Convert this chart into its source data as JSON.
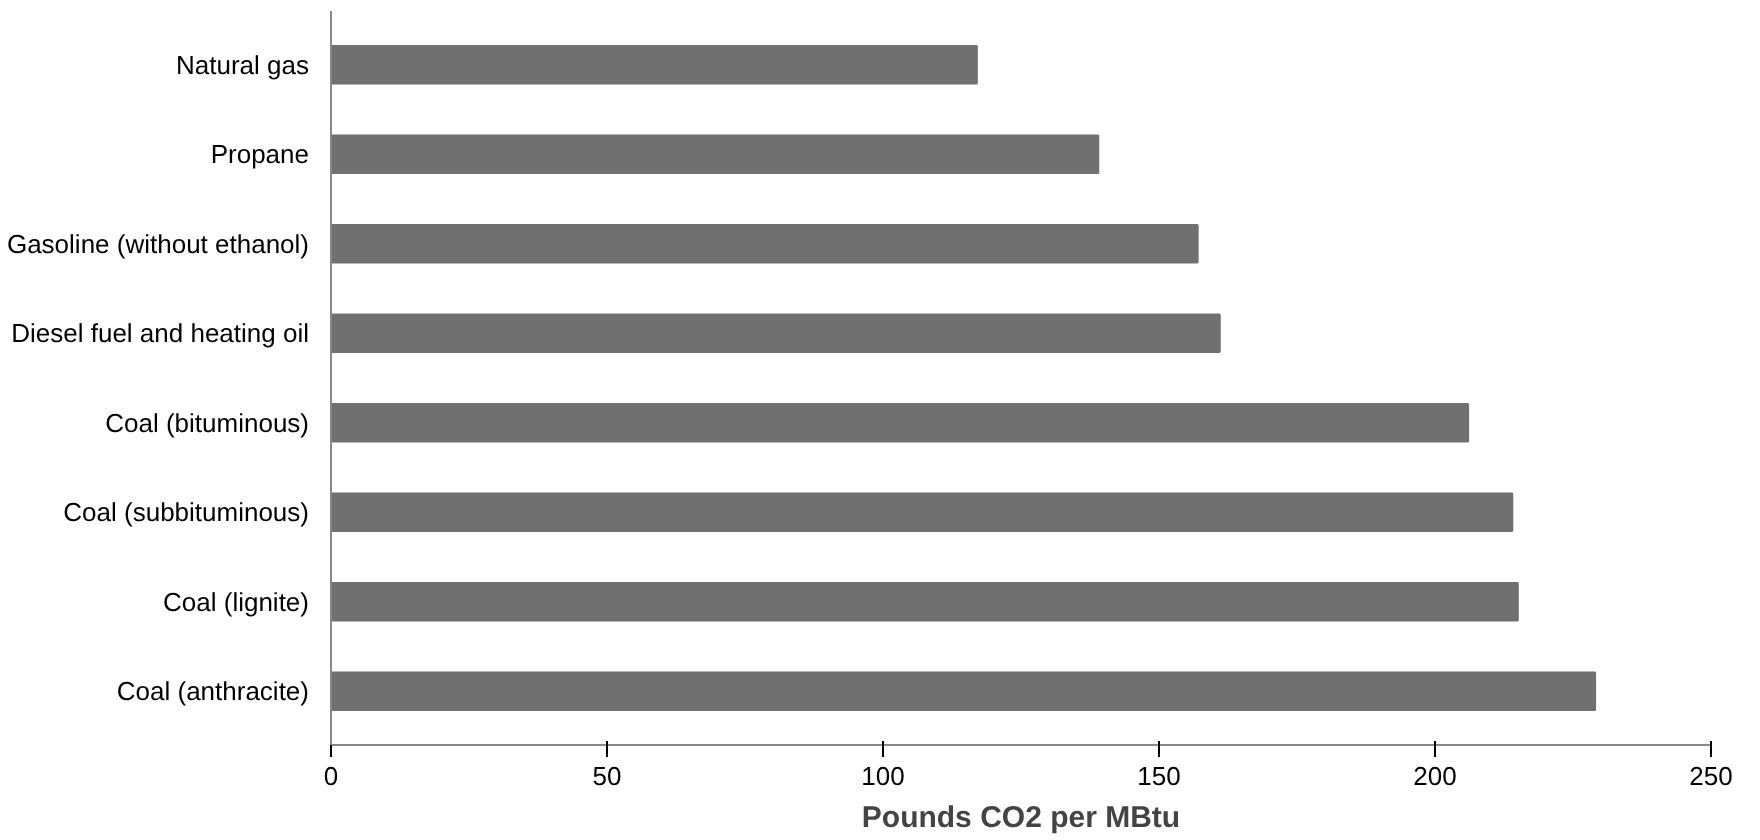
{
  "chart_data": {
    "type": "bar",
    "orientation": "horizontal",
    "xlabel": "Pounds CO2 per MBtu",
    "categories": [
      "Natural gas",
      "Propane",
      "Gasoline (without ethanol)",
      "Diesel fuel and heating oil",
      "Coal (bituminous)",
      "Coal (subbituminous)",
      "Coal (lignite)",
      "Coal (anthracite)"
    ],
    "values": [
      117,
      139,
      157,
      161,
      206,
      214,
      215,
      229
    ],
    "color": "#707070",
    "xlim": [
      0,
      250
    ],
    "xticks": [
      0,
      50,
      100,
      150,
      200,
      250
    ],
    "grid": false
  }
}
